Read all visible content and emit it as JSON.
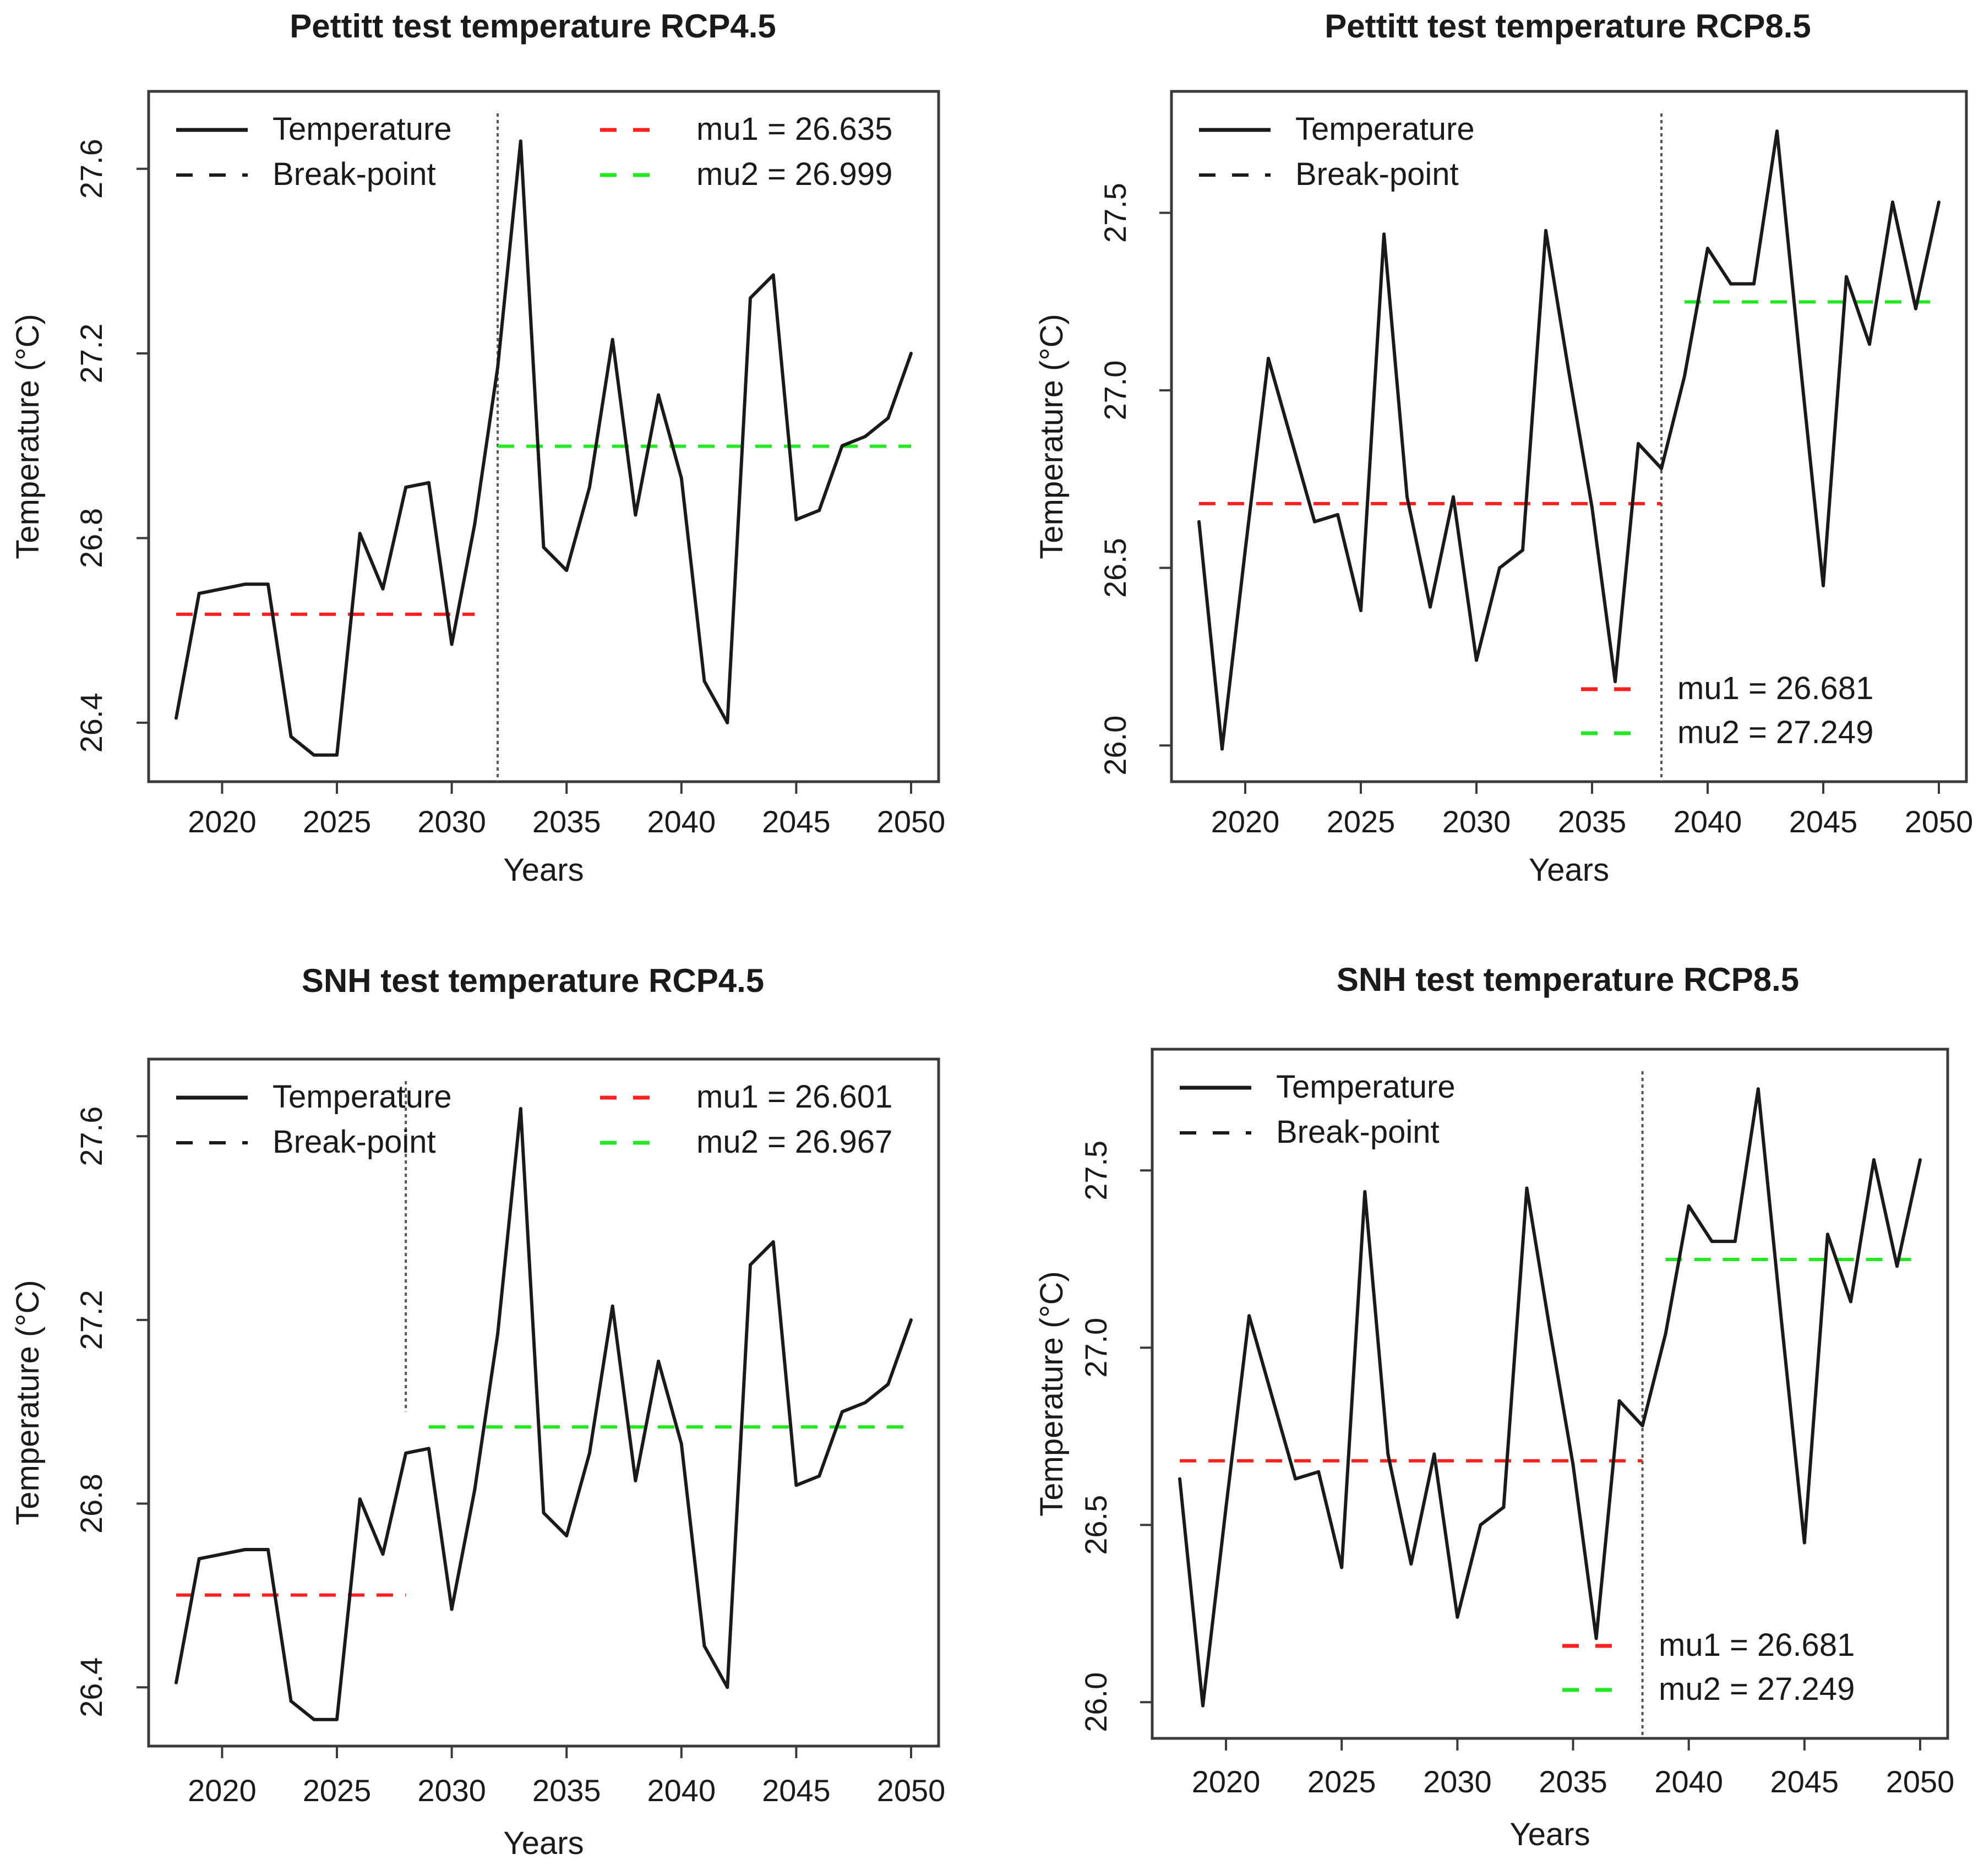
{
  "figure_title": "",
  "chart_data": [
    {
      "type": "line",
      "title": "Pettitt test temperature RCP4.5",
      "xlabel": "Years",
      "ylabel": "Temperature (°C)",
      "xlim": [
        2018,
        2050
      ],
      "ylim": [
        26.32,
        27.72
      ],
      "xticks": [
        2020,
        2025,
        2030,
        2035,
        2040,
        2045,
        2050
      ],
      "yticks": [
        26.4,
        26.8,
        27.2,
        27.6
      ],
      "ytick_labels": [
        "26.4",
        "26.8",
        "27.2",
        "27.6"
      ],
      "x": [
        2018,
        2019,
        2020,
        2021,
        2022,
        2023,
        2024,
        2025,
        2026,
        2027,
        2028,
        2029,
        2030,
        2031,
        2032,
        2033,
        2034,
        2035,
        2036,
        2037,
        2038,
        2039,
        2040,
        2041,
        2042,
        2043,
        2044,
        2045,
        2046,
        2047,
        2048,
        2049,
        2050
      ],
      "values": [
        26.41,
        26.68,
        26.69,
        26.7,
        26.7,
        26.37,
        26.33,
        26.33,
        26.81,
        26.69,
        26.91,
        26.92,
        26.57,
        26.83,
        27.17,
        27.66,
        26.78,
        26.73,
        26.91,
        27.23,
        26.85,
        27.11,
        26.93,
        26.49,
        26.4,
        27.32,
        27.37,
        26.84,
        26.86,
        27.0,
        27.02,
        27.06,
        27.2
      ],
      "series_name": "Temperature",
      "breakpoint_label": "Break-point",
      "breakpoint_x": 2032,
      "breakpoint_y_top": 27.72,
      "mu1": {
        "label": "mu1 = 26.635",
        "value": 26.635,
        "x_start": 2018,
        "x_end": 2031
      },
      "mu2": {
        "label": "mu2 = 26.999",
        "value": 26.999,
        "x_start": 2032,
        "x_end": 2050
      },
      "legend_position": "top",
      "colors": {
        "line": "#1a1a1a",
        "mu1": "#ff2020",
        "mu2": "#22e822",
        "breakpoint": "#555555"
      }
    },
    {
      "type": "line",
      "title": "Pettitt test temperature RCP8.5",
      "xlabel": "Years",
      "ylabel": "Temperature (°C)",
      "xlim": [
        2018,
        2050
      ],
      "ylim": [
        25.96,
        27.78
      ],
      "xticks": [
        2020,
        2025,
        2030,
        2035,
        2040,
        2045,
        2050
      ],
      "yticks": [
        26.0,
        26.5,
        27.0,
        27.5
      ],
      "ytick_labels": [
        "26.0",
        "26.5",
        "27.0",
        "27.5"
      ],
      "x": [
        2018,
        2019,
        2020,
        2021,
        2022,
        2023,
        2024,
        2025,
        2026,
        2027,
        2028,
        2029,
        2030,
        2031,
        2032,
        2033,
        2034,
        2035,
        2036,
        2037,
        2038,
        2039,
        2040,
        2041,
        2042,
        2043,
        2044,
        2045,
        2046,
        2047,
        2048,
        2049,
        2050
      ],
      "values": [
        26.63,
        25.99,
        26.55,
        27.09,
        26.86,
        26.63,
        26.65,
        26.38,
        27.44,
        26.7,
        26.39,
        26.7,
        26.24,
        26.5,
        26.55,
        27.45,
        27.05,
        26.67,
        26.18,
        26.85,
        26.78,
        27.04,
        27.4,
        27.3,
        27.3,
        27.73,
        27.08,
        26.45,
        27.32,
        27.13,
        27.53,
        27.23,
        27.53
      ],
      "series_name": "Temperature",
      "breakpoint_label": "Break-point",
      "breakpoint_x": 2038,
      "breakpoint_y_top": 27.78,
      "mu1": {
        "label": "mu1 = 26.681",
        "value": 26.681,
        "x_start": 2018,
        "x_end": 2038
      },
      "mu2": {
        "label": "mu2 = 27.249",
        "value": 27.249,
        "x_start": 2039,
        "x_end": 2050
      },
      "legend_position": "top-left and bottom-right",
      "colors": {
        "line": "#1a1a1a",
        "mu1": "#ff2020",
        "mu2": "#22e822",
        "breakpoint": "#555555"
      }
    },
    {
      "type": "line",
      "title": "SNH test temperature RCP4.5",
      "xlabel": "Years",
      "ylabel": "Temperature (°C)",
      "xlim": [
        2018,
        2050
      ],
      "ylim": [
        26.32,
        27.72
      ],
      "xticks": [
        2020,
        2025,
        2030,
        2035,
        2040,
        2045,
        2050
      ],
      "yticks": [
        26.4,
        26.8,
        27.2,
        27.6
      ],
      "ytick_labels": [
        "26.4",
        "26.8",
        "27.2",
        "27.6"
      ],
      "x": [
        2018,
        2019,
        2020,
        2021,
        2022,
        2023,
        2024,
        2025,
        2026,
        2027,
        2028,
        2029,
        2030,
        2031,
        2032,
        2033,
        2034,
        2035,
        2036,
        2037,
        2038,
        2039,
        2040,
        2041,
        2042,
        2043,
        2044,
        2045,
        2046,
        2047,
        2048,
        2049,
        2050
      ],
      "values": [
        26.41,
        26.68,
        26.69,
        26.7,
        26.7,
        26.37,
        26.33,
        26.33,
        26.81,
        26.69,
        26.91,
        26.92,
        26.57,
        26.83,
        27.17,
        27.66,
        26.78,
        26.73,
        26.91,
        27.23,
        26.85,
        27.11,
        26.93,
        26.49,
        26.4,
        27.32,
        27.37,
        26.84,
        26.86,
        27.0,
        27.02,
        27.06,
        27.2
      ],
      "series_name": "Temperature",
      "breakpoint_label": "Break-point",
      "breakpoint_x": 2028,
      "breakpoint_y_top": 27.72,
      "breakpoint_y_bottom": 27.0,
      "mu1": {
        "label": "mu1 = 26.601",
        "value": 26.601,
        "x_start": 2018,
        "x_end": 2028
      },
      "mu2": {
        "label": "mu2 = 26.967",
        "value": 26.967,
        "x_start": 2029,
        "x_end": 2050
      },
      "legend_position": "top",
      "colors": {
        "line": "#1a1a1a",
        "mu1": "#ff2020",
        "mu2": "#22e822",
        "breakpoint": "#555555"
      }
    },
    {
      "type": "line",
      "title": "SNH test temperature RCP8.5",
      "xlabel": "Years",
      "ylabel": "Temperature (°C)",
      "xlim": [
        2018,
        2050
      ],
      "ylim": [
        25.96,
        27.78
      ],
      "xticks": [
        2020,
        2025,
        2030,
        2035,
        2040,
        2045,
        2050
      ],
      "yticks": [
        26.0,
        26.5,
        27.0,
        27.5
      ],
      "ytick_labels": [
        "26.0",
        "26.5",
        "27.0",
        "27.5"
      ],
      "x": [
        2018,
        2019,
        2020,
        2021,
        2022,
        2023,
        2024,
        2025,
        2026,
        2027,
        2028,
        2029,
        2030,
        2031,
        2032,
        2033,
        2034,
        2035,
        2036,
        2037,
        2038,
        2039,
        2040,
        2041,
        2042,
        2043,
        2044,
        2045,
        2046,
        2047,
        2048,
        2049,
        2050
      ],
      "values": [
        26.63,
        25.99,
        26.55,
        27.09,
        26.86,
        26.63,
        26.65,
        26.38,
        27.44,
        26.7,
        26.39,
        26.7,
        26.24,
        26.5,
        26.55,
        27.45,
        27.05,
        26.67,
        26.18,
        26.85,
        26.78,
        27.04,
        27.4,
        27.3,
        27.3,
        27.73,
        27.08,
        26.45,
        27.32,
        27.13,
        27.53,
        27.23,
        27.53
      ],
      "series_name": "Temperature",
      "breakpoint_label": "Break-point",
      "breakpoint_x": 2038,
      "breakpoint_y_top": 27.78,
      "mu1": {
        "label": "mu1 = 26.681",
        "value": 26.681,
        "x_start": 2018,
        "x_end": 2038
      },
      "mu2": {
        "label": "mu2 = 27.249",
        "value": 27.249,
        "x_start": 2039,
        "x_end": 2050
      },
      "legend_position": "top-left and bottom-right",
      "colors": {
        "line": "#1a1a1a",
        "mu1": "#ff2020",
        "mu2": "#22e822",
        "breakpoint": "#555555"
      }
    }
  ]
}
